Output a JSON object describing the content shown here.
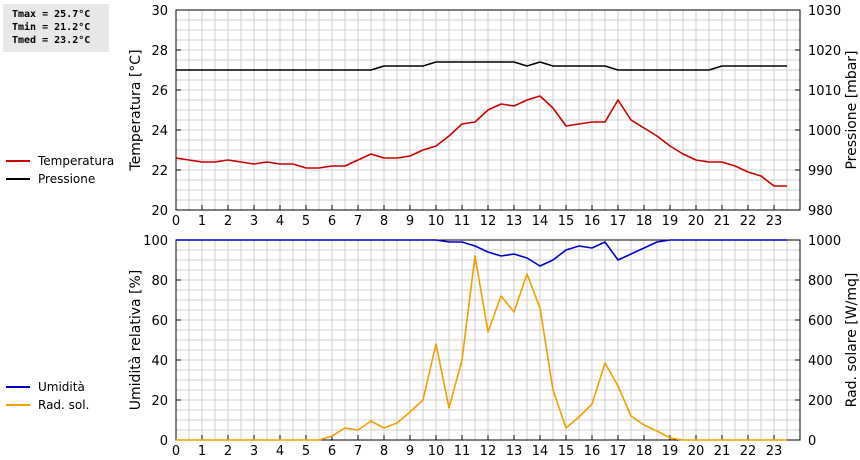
{
  "stats": {
    "tmax": "Tmax = 25.7°C",
    "tmin": "Tmin = 21.2°C",
    "tmed": "Tmed = 23.2°C"
  },
  "chart_data": [
    {
      "type": "line",
      "x_ticks": [
        0,
        1,
        2,
        3,
        4,
        5,
        6,
        7,
        8,
        9,
        10,
        11,
        12,
        13,
        14,
        15,
        16,
        17,
        18,
        19,
        20,
        21,
        22,
        23
      ],
      "xlim": [
        0,
        24
      ],
      "ylabel": "Temperatura [°C]",
      "ylabel_right": "Pressione [mbar]",
      "ylim": [
        20,
        30
      ],
      "ylim_right": [
        980,
        1030
      ],
      "y_ticks": [
        20,
        22,
        24,
        26,
        28,
        30
      ],
      "y_ticks_right": [
        980,
        990,
        1000,
        1010,
        1020,
        1030
      ],
      "grid": true,
      "legend_placement": "left",
      "series": [
        {
          "name": "Temperatura",
          "axis": "left",
          "color": "#cc0000",
          "x": [
            0,
            0.5,
            1,
            1.5,
            2,
            2.5,
            3,
            3.5,
            4,
            4.5,
            5,
            5.5,
            6,
            6.5,
            7,
            7.5,
            8,
            8.5,
            9,
            9.5,
            10,
            10.5,
            11,
            11.5,
            12,
            12.5,
            13,
            13.5,
            14,
            14.5,
            15,
            15.5,
            16,
            16.5,
            17,
            17.5,
            18,
            18.5,
            19,
            19.5,
            20,
            20.5,
            21,
            21.5,
            22,
            22.5,
            23,
            23.5
          ],
          "values": [
            22.6,
            22.5,
            22.4,
            22.4,
            22.5,
            22.4,
            22.3,
            22.4,
            22.3,
            22.3,
            22.1,
            22.1,
            22.2,
            22.2,
            22.5,
            22.8,
            22.6,
            22.6,
            22.7,
            23.0,
            23.2,
            23.7,
            24.3,
            24.4,
            25.0,
            25.3,
            25.2,
            25.5,
            25.7,
            25.1,
            24.2,
            24.3,
            24.4,
            24.4,
            25.5,
            24.5,
            24.1,
            23.7,
            23.2,
            22.8,
            22.5,
            22.4,
            22.4,
            22.2,
            21.9,
            21.7,
            21.2,
            21.2
          ]
        },
        {
          "name": "Pressione",
          "axis": "right",
          "color": "#000000",
          "x": [
            0,
            7.5,
            8,
            9.5,
            10,
            13,
            13.5,
            14,
            14.5,
            16.5,
            17,
            20.5,
            21,
            23.5
          ],
          "values": [
            1015,
            1015,
            1016,
            1016,
            1017,
            1017,
            1016,
            1017,
            1016,
            1016,
            1015,
            1015,
            1016,
            1016
          ]
        }
      ]
    },
    {
      "type": "line",
      "x_ticks": [
        0,
        1,
        2,
        3,
        4,
        5,
        6,
        7,
        8,
        9,
        10,
        11,
        12,
        13,
        14,
        15,
        16,
        17,
        18,
        19,
        20,
        21,
        22,
        23
      ],
      "xlim": [
        0,
        24
      ],
      "ylabel": "Umidità relativa [%]",
      "ylabel_right": "Rad. solare [W/mq]",
      "ylim": [
        0,
        100
      ],
      "ylim_right": [
        0,
        1000
      ],
      "y_ticks": [
        0,
        20,
        40,
        60,
        80,
        100
      ],
      "y_ticks_right": [
        0,
        200,
        400,
        600,
        800,
        1000
      ],
      "grid": true,
      "legend_placement": "left",
      "series": [
        {
          "name": "Umidità",
          "axis": "left",
          "color": "#0000cc",
          "x": [
            0,
            9.5,
            10,
            10.5,
            11,
            11.5,
            12,
            12.5,
            13,
            13.5,
            14,
            14.5,
            15,
            15.5,
            16,
            16.5,
            17,
            17.5,
            18,
            18.5,
            19,
            19.5,
            20,
            23.5
          ],
          "values": [
            100,
            100,
            100,
            99,
            99,
            97,
            94,
            92,
            93,
            91,
            87,
            90,
            95,
            97,
            96,
            99,
            90,
            93,
            96,
            99,
            100,
            100,
            100,
            100
          ]
        },
        {
          "name": "Rad. sol.",
          "axis": "right",
          "color": "#f0a000",
          "x": [
            0,
            5.5,
            6,
            6.5,
            7,
            7.5,
            8,
            8.5,
            9,
            9.5,
            10,
            10.5,
            11,
            11.5,
            12,
            12.5,
            13,
            13.5,
            14,
            14.5,
            15,
            15.5,
            16,
            16.5,
            17,
            17.5,
            18,
            18.5,
            19,
            19.5,
            20,
            23.5
          ],
          "values": [
            0,
            0,
            20,
            60,
            50,
            95,
            60,
            85,
            140,
            200,
            480,
            160,
            400,
            920,
            540,
            720,
            640,
            830,
            660,
            250,
            60,
            115,
            180,
            385,
            270,
            120,
            75,
            45,
            10,
            0,
            0,
            0
          ]
        }
      ]
    }
  ]
}
